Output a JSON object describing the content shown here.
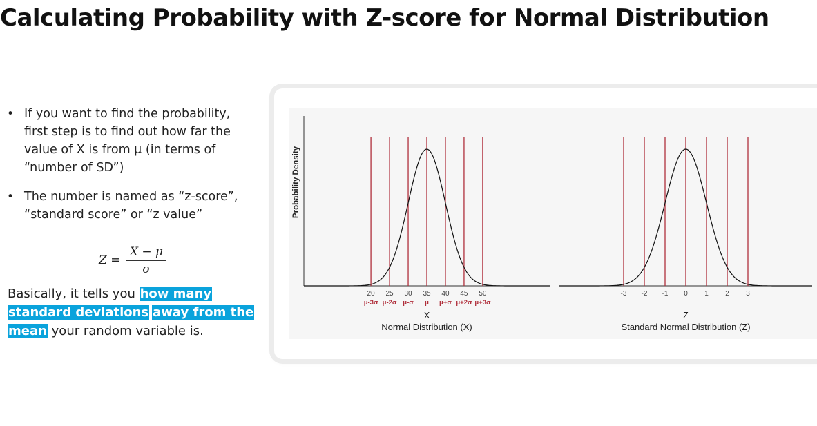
{
  "slide": {
    "title": "Calculating Probability with Z-score for Normal Distribution",
    "bullets": [
      "If you want to find the probability, first step is to find out how far the value of X is from μ (in terms of “number of SD”)",
      "The number is named as “z-score”, “standard score” or “z value”"
    ],
    "bullet_glyph": "•",
    "formula": {
      "lhs": "Z =",
      "numerator": "X − μ",
      "denominator": "σ"
    },
    "summary": {
      "prefix": "Basically, it tells you ",
      "highlight_1": "how many",
      "highlight_2": "standard deviations",
      "highlight_3": "away from the",
      "highlight_4": "mean",
      "suffix": " your random variable is."
    },
    "colors": {
      "highlight": "#0aa3dc",
      "sigma_lines": "#b0303c",
      "curve": "#111111"
    }
  },
  "chart_data": [
    {
      "type": "line",
      "title": "",
      "xlabel": "X",
      "caption": "Normal Distribution (X)",
      "ylabel": "Probability Density",
      "mean": 35,
      "sd": 5,
      "xlim": [
        2,
        68
      ],
      "ticks": [
        20,
        25,
        30,
        35,
        40,
        45,
        50
      ],
      "tick_sublabels": [
        "μ-3σ",
        "μ-2σ",
        "μ-σ",
        "μ",
        "μ+σ",
        "μ+2σ",
        "μ+3σ"
      ],
      "vlines": [
        20,
        25,
        30,
        35,
        40,
        45,
        50
      ],
      "grid": false
    },
    {
      "type": "line",
      "title": "",
      "xlabel": "Z",
      "caption": "Standard Normal Distribution (Z)",
      "mean": 0,
      "sd": 1,
      "xlim": [
        -6.1,
        6.1
      ],
      "ticks": [
        -3,
        -2,
        -1,
        0,
        1,
        2,
        3
      ],
      "vlines": [
        -3,
        -2,
        -1,
        0,
        1,
        2,
        3
      ],
      "grid": false
    }
  ]
}
